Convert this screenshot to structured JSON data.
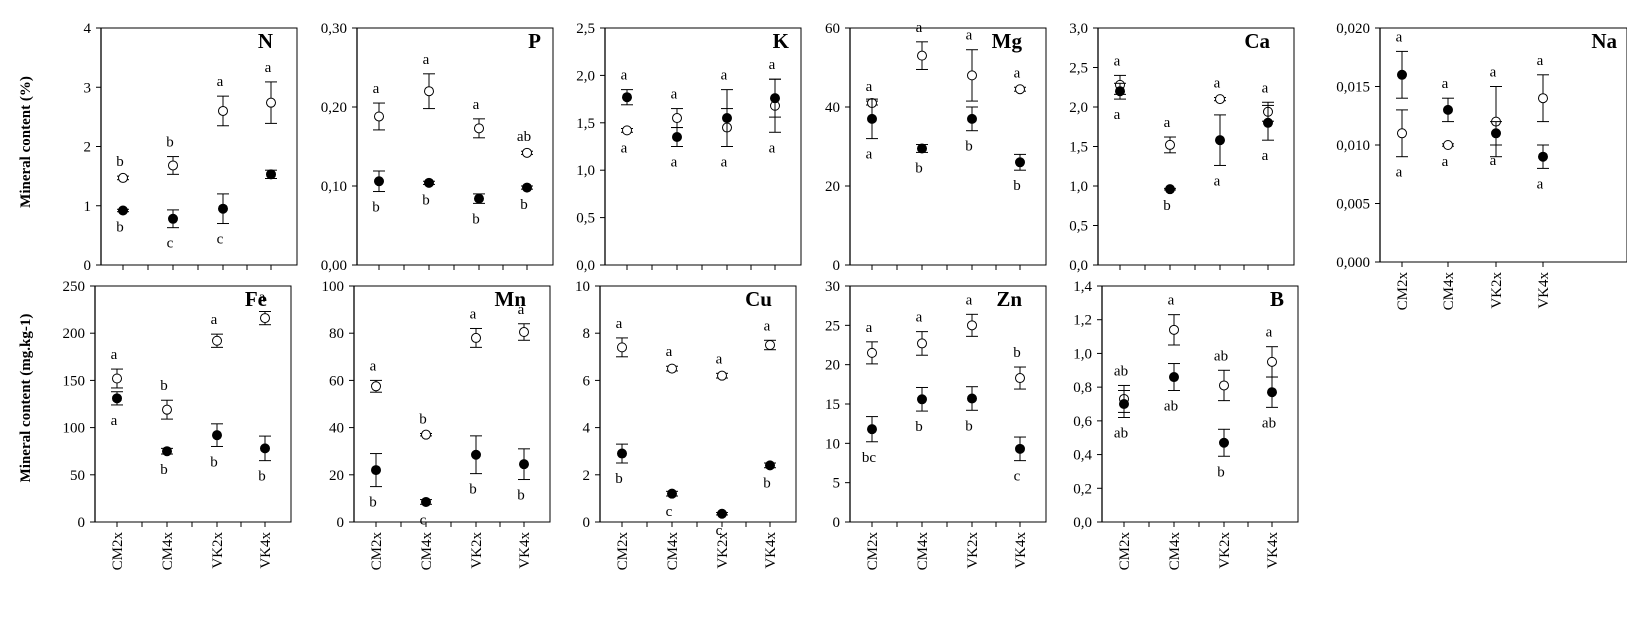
{
  "y_labels": {
    "top": "Mineral content (%)",
    "bottom": "Mineral content  (mg.kg-1)"
  },
  "chart_data": [
    {
      "type": "scatter",
      "title": "N",
      "ylim": [
        0,
        4
      ],
      "yticks": [
        "0",
        "1",
        "2",
        "3",
        "4"
      ],
      "categories": [],
      "series": [
        {
          "marker": "open",
          "values": [
            1.47,
            1.68,
            2.6,
            2.74
          ],
          "err": [
            0.03,
            0.15,
            0.25,
            0.35
          ],
          "labels": [
            "b",
            "b",
            "a",
            "a"
          ]
        },
        {
          "marker": "filled",
          "values": [
            0.92,
            0.78,
            0.95,
            1.53
          ],
          "err": [
            0.02,
            0.15,
            0.25,
            0.07
          ],
          "labels": [
            "b",
            "c",
            "c",
            ""
          ]
        }
      ]
    },
    {
      "type": "scatter",
      "title": "P",
      "ylim": [
        0,
        0.3
      ],
      "yticks": [
        "0,00",
        "0,10",
        "0,20",
        "0,30"
      ],
      "categories": [],
      "series": [
        {
          "marker": "open",
          "values": [
            0.188,
            0.22,
            0.173,
            0.142
          ],
          "err": [
            0.017,
            0.022,
            0.012,
            0.002
          ],
          "labels": [
            "a",
            "a",
            "a",
            "ab"
          ]
        },
        {
          "marker": "filled",
          "values": [
            0.106,
            0.104,
            0.084,
            0.098
          ],
          "err": [
            0.013,
            0.002,
            0.006,
            0.002
          ],
          "labels": [
            "b",
            "b",
            "b",
            "b"
          ]
        }
      ]
    },
    {
      "type": "scatter",
      "title": "K",
      "ylim": [
        0,
        2.5
      ],
      "yticks": [
        "0,0",
        "0,5",
        "1,0",
        "1,5",
        "2,0",
        "2,5"
      ],
      "categories": [],
      "series": [
        {
          "marker": "open",
          "values": [
            1.42,
            1.55,
            1.45,
            1.68
          ],
          "err": [
            0.02,
            0.1,
            0.2,
            0.28
          ],
          "labels": [
            "a",
            "a",
            "a",
            "a"
          ]
        },
        {
          "marker": "filled",
          "values": [
            1.77,
            1.35,
            1.55,
            1.76
          ],
          "err": [
            0.08,
            0.1,
            0.3,
            0.2
          ],
          "labels": [
            "a",
            "a",
            "a",
            "a"
          ]
        }
      ]
    },
    {
      "type": "scatter",
      "title": "Mg",
      "ylim": [
        0,
        60
      ],
      "yticks": [
        "0",
        "20",
        "40",
        "60"
      ],
      "categories": [],
      "series": [
        {
          "marker": "open",
          "values": [
            41,
            53,
            48,
            44.5
          ],
          "err": [
            0.5,
            3.5,
            6.5,
            0.5
          ],
          "labels": [
            "a",
            "a",
            "a",
            "a"
          ]
        },
        {
          "marker": "filled",
          "values": [
            37,
            29.5,
            37,
            26
          ],
          "err": [
            5,
            1,
            3,
            2
          ],
          "labels": [
            "a",
            "b",
            "b",
            "b"
          ]
        }
      ]
    },
    {
      "type": "scatter",
      "title": "Ca",
      "ylim": [
        0,
        3
      ],
      "yticks": [
        "0,0",
        "0,5",
        "1,0",
        "1,5",
        "2,0",
        "2,5",
        "3,0"
      ],
      "categories": [],
      "series": [
        {
          "marker": "open",
          "values": [
            2.28,
            1.52,
            2.1,
            1.94
          ],
          "err": [
            0.12,
            0.1,
            0.02,
            0.12
          ],
          "labels": [
            "a",
            "a",
            "a",
            "a"
          ]
        },
        {
          "marker": "filled",
          "values": [
            2.2,
            0.96,
            1.58,
            1.8
          ],
          "err": [
            0.1,
            0.01,
            0.32,
            0.22
          ],
          "labels": [
            "a",
            "b",
            "a",
            "a"
          ]
        }
      ]
    },
    {
      "type": "scatter",
      "title": "Na",
      "ylim": [
        0,
        0.02
      ],
      "yticks": [
        "0,000",
        "0,005",
        "0,010",
        "0,015",
        "0,020"
      ],
      "categories": [
        "CM2x",
        "CM4x",
        "VK2x",
        "VK4x"
      ],
      "series": [
        {
          "marker": "open",
          "values": [
            0.011,
            0.01,
            0.012,
            0.014
          ],
          "err": [
            0.002,
            0.0001,
            0.003,
            0.002
          ],
          "labels": [
            "a",
            "a",
            "a",
            "a"
          ]
        },
        {
          "marker": "filled",
          "values": [
            0.016,
            0.013,
            0.011,
            0.009
          ],
          "err": [
            0.002,
            0.001,
            0.001,
            0.001
          ],
          "labels": [
            "a",
            "a",
            "a",
            "a"
          ]
        }
      ]
    },
    {
      "type": "scatter",
      "title": "Fe",
      "ylim": [
        0,
        250
      ],
      "yticks": [
        "0",
        "50",
        "100",
        "150",
        "200",
        "250"
      ],
      "categories": [
        "CM2x",
        "CM4x",
        "VK2x",
        "VK4x"
      ],
      "series": [
        {
          "marker": "open",
          "values": [
            152,
            119,
            192,
            216
          ],
          "err": [
            10,
            10,
            7,
            7
          ],
          "labels": [
            "a",
            "b",
            "a",
            "a"
          ]
        },
        {
          "marker": "filled",
          "values": [
            131,
            75,
            92,
            78
          ],
          "err": [
            7,
            3,
            12,
            13
          ],
          "labels": [
            "a",
            "b",
            "b",
            "b"
          ]
        }
      ]
    },
    {
      "type": "scatter",
      "title": "Mn",
      "ylim": [
        0,
        100
      ],
      "yticks": [
        "0",
        "20",
        "40",
        "60",
        "80",
        "100"
      ],
      "categories": [
        "CM2x",
        "CM4x",
        "VK2x",
        "VK4x"
      ],
      "series": [
        {
          "marker": "open",
          "values": [
            57.5,
            37,
            78,
            80.5
          ],
          "err": [
            2.5,
            0.5,
            4,
            3.5
          ],
          "labels": [
            "a",
            "b",
            "a",
            "a"
          ]
        },
        {
          "marker": "filled",
          "values": [
            22,
            8.5,
            28.5,
            24.5
          ],
          "err": [
            7,
            1,
            8,
            6.5
          ],
          "labels": [
            "b",
            "c",
            "b",
            "b"
          ]
        }
      ]
    },
    {
      "type": "scatter",
      "title": "Cu",
      "ylim": [
        0,
        10
      ],
      "yticks": [
        "0",
        "2",
        "4",
        "6",
        "8",
        "10"
      ],
      "categories": [
        "CM2x",
        "CM4x",
        "VK2x",
        "VK4x"
      ],
      "series": [
        {
          "marker": "open",
          "values": [
            7.4,
            6.5,
            6.2,
            7.5
          ],
          "err": [
            0.4,
            0.1,
            0.1,
            0.2
          ],
          "labels": [
            "a",
            "a",
            "a",
            "a"
          ]
        },
        {
          "marker": "filled",
          "values": [
            2.9,
            1.2,
            0.35,
            2.4
          ],
          "err": [
            0.4,
            0.1,
            0.05,
            0.1
          ],
          "labels": [
            "b",
            "c",
            "c",
            "b"
          ]
        }
      ]
    },
    {
      "type": "scatter",
      "title": "Zn",
      "ylim": [
        0,
        30
      ],
      "yticks": [
        "0",
        "5",
        "10",
        "15",
        "20",
        "25",
        "30"
      ],
      "categories": [
        "CM2x",
        "CM4x",
        "VK2x",
        "VK4x"
      ],
      "series": [
        {
          "marker": "open",
          "values": [
            21.5,
            22.7,
            25,
            18.3
          ],
          "err": [
            1.4,
            1.5,
            1.4,
            1.4
          ],
          "labels": [
            "a",
            "a",
            "a",
            "b"
          ]
        },
        {
          "marker": "filled",
          "values": [
            11.8,
            15.6,
            15.7,
            9.3
          ],
          "err": [
            1.6,
            1.5,
            1.5,
            1.5
          ],
          "labels": [
            "bc",
            "b",
            "b",
            "c"
          ]
        }
      ]
    },
    {
      "type": "scatter",
      "title": "B",
      "ylim": [
        0,
        1.4
      ],
      "yticks": [
        "0,0",
        "0,2",
        "0,4",
        "0,6",
        "0,8",
        "1,0",
        "1,2",
        "1,4"
      ],
      "categories": [
        "CM2x",
        "CM4x",
        "VK2x",
        "VK4x"
      ],
      "series": [
        {
          "marker": "open",
          "values": [
            0.73,
            1.14,
            0.81,
            0.95
          ],
          "err": [
            0.08,
            0.09,
            0.09,
            0.09
          ],
          "labels": [
            "ab",
            "a",
            "ab",
            "a"
          ]
        },
        {
          "marker": "filled",
          "values": [
            0.7,
            0.86,
            0.47,
            0.77
          ],
          "err": [
            0.08,
            0.08,
            0.08,
            0.09
          ],
          "labels": [
            "ab",
            "ab",
            "b",
            "ab"
          ]
        }
      ]
    }
  ]
}
